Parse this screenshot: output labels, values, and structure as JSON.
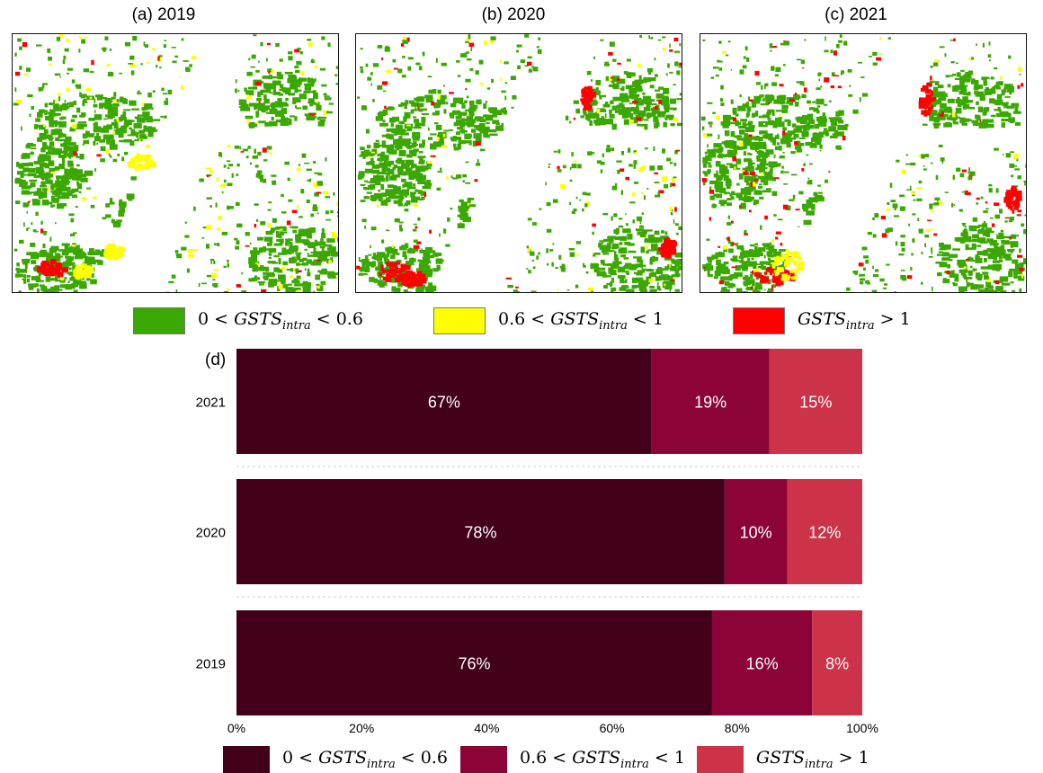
{
  "maps": [
    {
      "label": "(a) 2019"
    },
    {
      "label": "(b) 2020"
    },
    {
      "label": "(c) 2021"
    }
  ],
  "colors": {
    "map_low": "#3aa800",
    "map_mid": "#ffff00",
    "map_high": "#ff0000",
    "bar_low": "#42001a",
    "bar_mid": "#8c0338",
    "bar_high": "#cc3349"
  },
  "map_legend": [
    {
      "prefix": "0 < ",
      "var": "GSTS",
      "sub": "intra",
      "suffix": " < 0.6",
      "color_key": "map_low"
    },
    {
      "prefix": "0.6 < ",
      "var": "GSTS",
      "sub": "intra",
      "suffix": " < 1",
      "color_key": "map_mid"
    },
    {
      "prefix": "",
      "var": "GSTS",
      "sub": "intra",
      "suffix": " > 1",
      "color_key": "map_high"
    }
  ],
  "panel_d_label": "(d)",
  "chart_data": {
    "type": "bar",
    "orientation": "horizontal",
    "stacked": true,
    "categories": [
      "2021",
      "2020",
      "2019"
    ],
    "series": [
      {
        "name": "0 < GSTS_intra < 0.6",
        "values": [
          67,
          78,
          76
        ],
        "labels": [
          "67%",
          "78%",
          "76%"
        ]
      },
      {
        "name": "0.6 < GSTS_intra < 1",
        "values": [
          19,
          10,
          16
        ],
        "labels": [
          "19%",
          "10%",
          "16%"
        ]
      },
      {
        "name": "GSTS_intra > 1",
        "values": [
          15,
          12,
          8
        ],
        "labels": [
          "15%",
          "12%",
          "8%"
        ]
      }
    ],
    "xlim": [
      0,
      100
    ],
    "xticks": [
      "0%",
      "20%",
      "40%",
      "60%",
      "80%",
      "100%"
    ],
    "legend_position": "bottom"
  }
}
